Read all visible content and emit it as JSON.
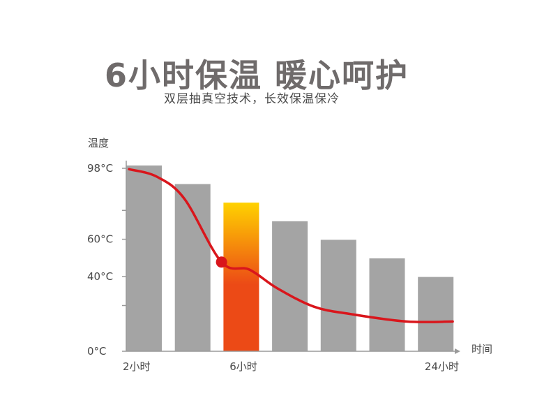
{
  "title": "6小时保温 暖心呵护",
  "subtitle": "双层抽真空技术，长效保温保冷",
  "chart_data": {
    "type": "bar",
    "ylabel": "温度",
    "xlabel": "时间",
    "ylim": [
      0,
      98
    ],
    "y_ticks": [
      "98°C",
      "60°C",
      "40°C",
      "0°C"
    ],
    "y_tick_values": [
      98,
      60,
      40,
      0
    ],
    "x_tick_labels": [
      "2小时",
      "6小时",
      "24小时"
    ],
    "values": [
      100,
      90,
      80,
      70,
      60,
      50,
      40
    ],
    "highlight_index": 2,
    "curve": {
      "x": [
        0.0,
        0.6,
        1.2,
        2.0,
        2.6,
        3.2,
        4.0,
        4.8,
        6.0,
        7.0
      ],
      "values": [
        98,
        94,
        82,
        48,
        44,
        34,
        24,
        20,
        16,
        16
      ],
      "marker_point": [
        2.0,
        48
      ]
    },
    "colors": {
      "bar": "#a4a4a4",
      "highlight_top": "#ffd200",
      "highlight_bottom": "#ec4a16",
      "curve": "#d9161c",
      "axis": "#9a9a9a"
    }
  }
}
